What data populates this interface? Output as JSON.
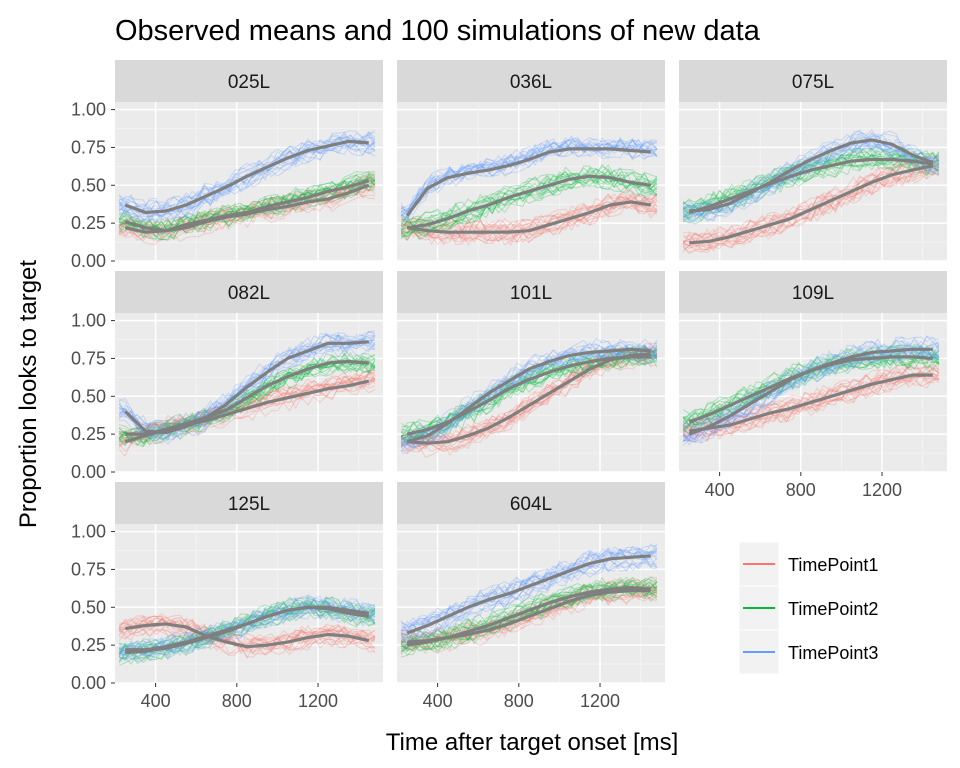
{
  "chart_data": {
    "type": "line",
    "title": "Observed means and 100 simulations of new data",
    "xlabel": "Time after target onset [ms]",
    "ylabel": "Proportion looks to target",
    "xlim": [
      200,
      1520
    ],
    "ylim": [
      0,
      1.05
    ],
    "x_ticks": [
      400,
      800,
      1200
    ],
    "y_ticks": [
      0,
      0.25,
      0.5,
      0.75,
      1.0
    ],
    "x_tick_labels": [
      "400",
      "800",
      "1200"
    ],
    "y_tick_labels": [
      "0.00",
      "0.25",
      "0.50",
      "0.75",
      "1.00"
    ],
    "grid": true,
    "legend_position": "bottom-right",
    "observed_line_color": "#7f7f7f",
    "simulation_count": 100,
    "series_styles": [
      {
        "name": "TimePoint1",
        "color": "#F8766D"
      },
      {
        "name": "TimePoint2",
        "color": "#00BA38"
      },
      {
        "name": "TimePoint3",
        "color": "#619CFF"
      }
    ],
    "panels": [
      {
        "label": "025L",
        "series": [
          {
            "name": "TimePoint1",
            "x": [
              250,
              350,
              450,
              550,
              650,
              750,
              850,
              950,
              1050,
              1150,
              1250,
              1350,
              1450
            ],
            "values": [
              0.22,
              0.19,
              0.2,
              0.22,
              0.26,
              0.29,
              0.31,
              0.34,
              0.36,
              0.39,
              0.41,
              0.45,
              0.5
            ]
          },
          {
            "name": "TimePoint2",
            "x": [
              250,
              350,
              450,
              550,
              650,
              750,
              850,
              950,
              1050,
              1150,
              1250,
              1350,
              1450
            ],
            "values": [
              0.26,
              0.22,
              0.2,
              0.24,
              0.27,
              0.3,
              0.32,
              0.36,
              0.39,
              0.42,
              0.46,
              0.49,
              0.53
            ]
          },
          {
            "name": "TimePoint3",
            "x": [
              250,
              350,
              450,
              550,
              650,
              750,
              850,
              950,
              1050,
              1150,
              1250,
              1350,
              1450
            ],
            "values": [
              0.37,
              0.32,
              0.33,
              0.37,
              0.43,
              0.49,
              0.56,
              0.62,
              0.68,
              0.73,
              0.76,
              0.79,
              0.78
            ]
          }
        ]
      },
      {
        "label": "036L",
        "series": [
          {
            "name": "TimePoint1",
            "x": [
              250,
              350,
              450,
              550,
              650,
              750,
              850,
              950,
              1050,
              1150,
              1250,
              1350,
              1450
            ],
            "values": [
              0.22,
              0.2,
              0.19,
              0.19,
              0.19,
              0.19,
              0.2,
              0.24,
              0.28,
              0.32,
              0.37,
              0.39,
              0.37
            ]
          },
          {
            "name": "TimePoint2",
            "x": [
              250,
              350,
              450,
              550,
              650,
              750,
              850,
              950,
              1050,
              1150,
              1250,
              1350,
              1450
            ],
            "values": [
              0.22,
              0.24,
              0.28,
              0.33,
              0.37,
              0.42,
              0.46,
              0.5,
              0.54,
              0.56,
              0.55,
              0.52,
              0.5
            ]
          },
          {
            "name": "TimePoint3",
            "x": [
              250,
              350,
              450,
              550,
              650,
              750,
              850,
              950,
              1050,
              1150,
              1250,
              1350,
              1450
            ],
            "values": [
              0.3,
              0.48,
              0.55,
              0.58,
              0.6,
              0.63,
              0.67,
              0.72,
              0.74,
              0.74,
              0.74,
              0.73,
              0.72
            ]
          }
        ]
      },
      {
        "label": "075L",
        "series": [
          {
            "name": "TimePoint1",
            "x": [
              250,
              350,
              450,
              550,
              650,
              750,
              850,
              950,
              1050,
              1150,
              1250,
              1350,
              1450
            ],
            "values": [
              0.12,
              0.13,
              0.16,
              0.2,
              0.24,
              0.28,
              0.34,
              0.4,
              0.46,
              0.52,
              0.57,
              0.6,
              0.63
            ]
          },
          {
            "name": "TimePoint2",
            "x": [
              250,
              350,
              450,
              550,
              650,
              750,
              850,
              950,
              1050,
              1150,
              1250,
              1350,
              1450
            ],
            "values": [
              0.32,
              0.36,
              0.41,
              0.46,
              0.51,
              0.56,
              0.6,
              0.63,
              0.66,
              0.67,
              0.67,
              0.66,
              0.64
            ]
          },
          {
            "name": "TimePoint3",
            "x": [
              250,
              350,
              450,
              550,
              650,
              750,
              850,
              950,
              1050,
              1150,
              1250,
              1350,
              1450
            ],
            "values": [
              0.33,
              0.34,
              0.38,
              0.45,
              0.52,
              0.6,
              0.67,
              0.73,
              0.78,
              0.8,
              0.77,
              0.7,
              0.65
            ]
          }
        ]
      },
      {
        "label": "082L",
        "series": [
          {
            "name": "TimePoint1",
            "x": [
              250,
              350,
              450,
              550,
              650,
              750,
              850,
              950,
              1050,
              1150,
              1250,
              1350,
              1450
            ],
            "values": [
              0.2,
              0.24,
              0.28,
              0.31,
              0.34,
              0.38,
              0.42,
              0.46,
              0.49,
              0.52,
              0.55,
              0.57,
              0.6
            ]
          },
          {
            "name": "TimePoint2",
            "x": [
              250,
              350,
              450,
              550,
              650,
              750,
              850,
              950,
              1050,
              1150,
              1250,
              1350,
              1450
            ],
            "values": [
              0.25,
              0.25,
              0.28,
              0.32,
              0.36,
              0.41,
              0.49,
              0.57,
              0.63,
              0.68,
              0.72,
              0.73,
              0.72
            ]
          },
          {
            "name": "TimePoint3",
            "x": [
              250,
              350,
              450,
              550,
              650,
              750,
              850,
              950,
              1050,
              1150,
              1250,
              1350,
              1450
            ],
            "values": [
              0.4,
              0.27,
              0.26,
              0.3,
              0.36,
              0.45,
              0.56,
              0.66,
              0.75,
              0.8,
              0.85,
              0.85,
              0.86
            ]
          }
        ]
      },
      {
        "label": "101L",
        "series": [
          {
            "name": "TimePoint1",
            "x": [
              250,
              350,
              450,
              550,
              650,
              750,
              850,
              950,
              1050,
              1150,
              1250,
              1350,
              1450
            ],
            "values": [
              0.2,
              0.19,
              0.2,
              0.24,
              0.29,
              0.36,
              0.44,
              0.52,
              0.6,
              0.68,
              0.74,
              0.77,
              0.78
            ]
          },
          {
            "name": "TimePoint2",
            "x": [
              250,
              350,
              450,
              550,
              650,
              750,
              850,
              950,
              1050,
              1150,
              1250,
              1350,
              1450
            ],
            "values": [
              0.25,
              0.28,
              0.33,
              0.4,
              0.47,
              0.55,
              0.61,
              0.66,
              0.7,
              0.73,
              0.75,
              0.76,
              0.76
            ]
          },
          {
            "name": "TimePoint3",
            "x": [
              250,
              350,
              450,
              550,
              650,
              750,
              850,
              950,
              1050,
              1150,
              1250,
              1350,
              1450
            ],
            "values": [
              0.2,
              0.24,
              0.32,
              0.42,
              0.52,
              0.6,
              0.68,
              0.73,
              0.77,
              0.79,
              0.8,
              0.81,
              0.8
            ]
          }
        ]
      },
      {
        "label": "109L",
        "series": [
          {
            "name": "TimePoint1",
            "x": [
              250,
              350,
              450,
              550,
              650,
              750,
              850,
              950,
              1050,
              1150,
              1250,
              1350,
              1450
            ],
            "values": [
              0.27,
              0.29,
              0.31,
              0.35,
              0.39,
              0.42,
              0.46,
              0.5,
              0.54,
              0.58,
              0.61,
              0.64,
              0.64
            ]
          },
          {
            "name": "TimePoint2",
            "x": [
              250,
              350,
              450,
              550,
              650,
              750,
              850,
              950,
              1050,
              1150,
              1250,
              1350,
              1450
            ],
            "values": [
              0.33,
              0.38,
              0.44,
              0.5,
              0.56,
              0.62,
              0.67,
              0.71,
              0.74,
              0.75,
              0.76,
              0.76,
              0.75
            ]
          },
          {
            "name": "TimePoint3",
            "x": [
              250,
              350,
              450,
              550,
              650,
              750,
              850,
              950,
              1050,
              1150,
              1250,
              1350,
              1450
            ],
            "values": [
              0.25,
              0.3,
              0.37,
              0.45,
              0.53,
              0.61,
              0.67,
              0.72,
              0.76,
              0.79,
              0.8,
              0.81,
              0.81
            ]
          }
        ]
      },
      {
        "label": "125L",
        "series": [
          {
            "name": "TimePoint1",
            "x": [
              250,
              350,
              450,
              550,
              650,
              750,
              850,
              950,
              1050,
              1150,
              1250,
              1350,
              1450
            ],
            "values": [
              0.36,
              0.38,
              0.39,
              0.37,
              0.31,
              0.27,
              0.24,
              0.25,
              0.27,
              0.3,
              0.32,
              0.31,
              0.28
            ]
          },
          {
            "name": "TimePoint2",
            "x": [
              250,
              350,
              450,
              550,
              650,
              750,
              850,
              950,
              1050,
              1150,
              1250,
              1350,
              1450
            ],
            "values": [
              0.2,
              0.21,
              0.23,
              0.26,
              0.3,
              0.34,
              0.39,
              0.44,
              0.48,
              0.5,
              0.49,
              0.46,
              0.44
            ]
          },
          {
            "name": "TimePoint3",
            "x": [
              250,
              350,
              450,
              550,
              650,
              750,
              850,
              950,
              1050,
              1150,
              1250,
              1350,
              1450
            ],
            "values": [
              0.22,
              0.22,
              0.24,
              0.27,
              0.31,
              0.35,
              0.39,
              0.44,
              0.48,
              0.5,
              0.5,
              0.48,
              0.46
            ]
          }
        ]
      },
      {
        "label": "604L",
        "series": [
          {
            "name": "TimePoint1",
            "x": [
              250,
              350,
              450,
              550,
              650,
              750,
              850,
              950,
              1050,
              1150,
              1250,
              1350,
              1450
            ],
            "values": [
              0.27,
              0.28,
              0.3,
              0.32,
              0.35,
              0.39,
              0.44,
              0.49,
              0.54,
              0.58,
              0.6,
              0.61,
              0.61
            ]
          },
          {
            "name": "TimePoint2",
            "x": [
              250,
              350,
              450,
              550,
              650,
              750,
              850,
              950,
              1050,
              1150,
              1250,
              1350,
              1450
            ],
            "values": [
              0.25,
              0.27,
              0.3,
              0.34,
              0.38,
              0.43,
              0.48,
              0.53,
              0.57,
              0.6,
              0.62,
              0.63,
              0.62
            ]
          },
          {
            "name": "TimePoint3",
            "x": [
              250,
              350,
              450,
              550,
              650,
              750,
              850,
              950,
              1050,
              1150,
              1250,
              1350,
              1450
            ],
            "values": [
              0.33,
              0.38,
              0.44,
              0.5,
              0.55,
              0.59,
              0.64,
              0.69,
              0.74,
              0.79,
              0.82,
              0.83,
              0.84
            ]
          }
        ]
      }
    ]
  }
}
